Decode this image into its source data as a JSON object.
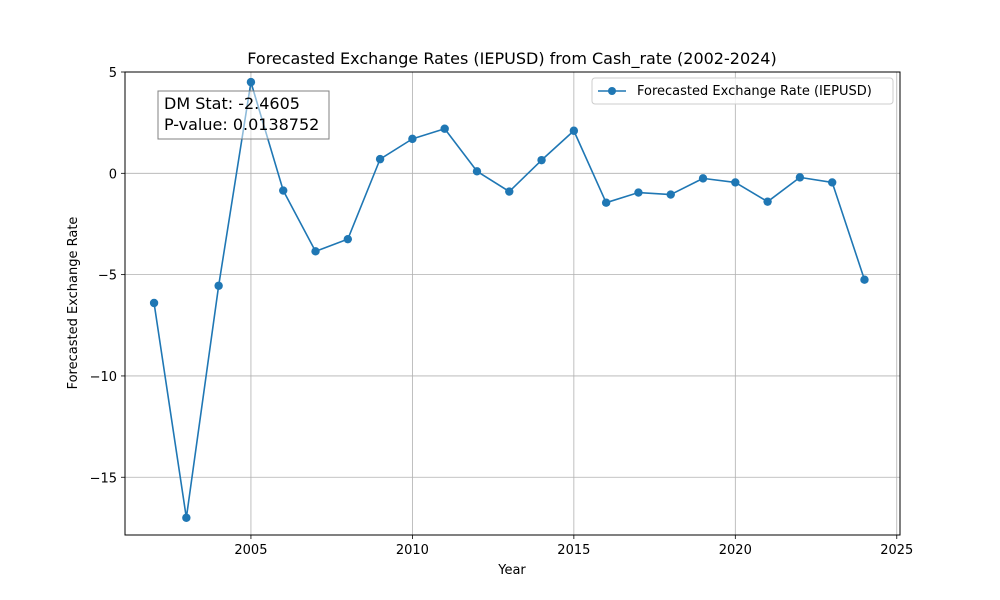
{
  "chart_data": {
    "type": "line",
    "title": "Forecasted Exchange Rates (IEPUSD) from Cash_rate (2002-2024)",
    "xlabel": "Year",
    "ylabel": "Forecasted Exchange Rate",
    "xlim": [
      2001.1,
      2025.1
    ],
    "ylim": [
      -17.85,
      5.0
    ],
    "xticks": [
      2005,
      2010,
      2015,
      2020,
      2025
    ],
    "yticks": [
      -15,
      -10,
      -5,
      0,
      5
    ],
    "xtick_labels": [
      "2005",
      "2010",
      "2015",
      "2020",
      "2025"
    ],
    "ytick_labels": [
      "−15",
      "−10",
      "−5",
      "0",
      "5"
    ],
    "grid": true,
    "legend_position": "top-right",
    "series": [
      {
        "name": "Forecasted Exchange Rate (IEPUSD)",
        "color": "#1f77b4",
        "marker": "circle",
        "x": [
          2002,
          2003,
          2004,
          2005,
          2006,
          2007,
          2008,
          2009,
          2010,
          2011,
          2012,
          2013,
          2014,
          2015,
          2016,
          2017,
          2018,
          2019,
          2020,
          2021,
          2022,
          2023,
          2024
        ],
        "y": [
          -6.4,
          -17.0,
          -5.55,
          4.5,
          -0.85,
          -3.85,
          -3.25,
          0.7,
          1.7,
          2.2,
          0.1,
          -0.9,
          0.65,
          2.1,
          -1.45,
          -0.95,
          -1.05,
          -0.25,
          -0.45,
          -1.4,
          -0.2,
          -0.45,
          -5.25
        ]
      }
    ],
    "annotation": {
      "line1": "DM Stat: -2.4605",
      "line2": "P-value: 0.0138752"
    }
  }
}
